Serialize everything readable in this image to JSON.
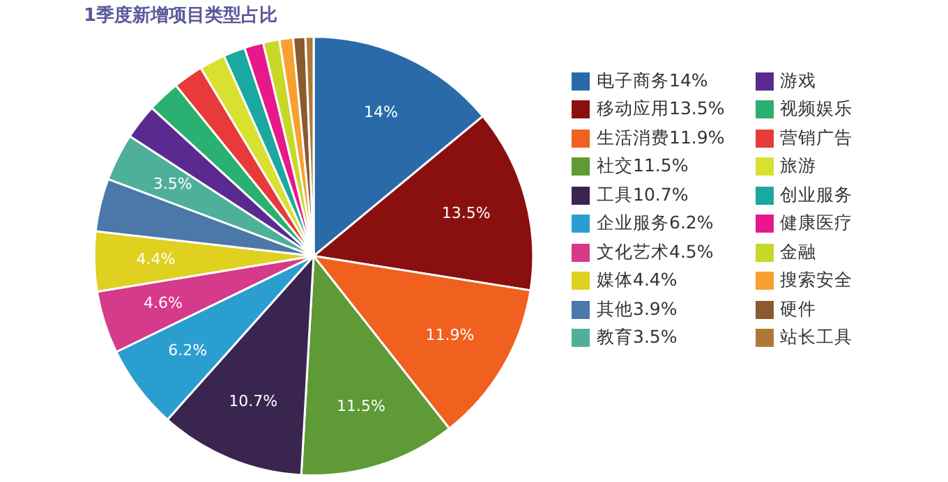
{
  "chart_data": {
    "type": "pie",
    "title": "1季度新增项目类型占比",
    "categories": [
      "电子商务14%",
      "移动应用13.5%",
      "生活消费11.9%",
      "社交11.5%",
      "工具10.7%",
      "企业服务6.2%",
      "文化艺术4.5%",
      "媒体4.4%",
      "其他3.9%",
      "教育3.5%",
      "游戏",
      "视频娱乐",
      "营销广告",
      "旅游",
      "创业服务",
      "健康医疗",
      "金融",
      "搜索安全",
      "硬件",
      "站长工具"
    ],
    "values": [
      14,
      13.5,
      11.9,
      11.5,
      10.7,
      6.2,
      4.6,
      4.4,
      3.9,
      3.5,
      2.6,
      2.4,
      2.2,
      1.9,
      1.6,
      1.4,
      1.2,
      1.0,
      0.9,
      0.6
    ],
    "value_labels": [
      "14%",
      "13.5%",
      "11.9%",
      "11.5%",
      "10.7%",
      "6.2%",
      "4.6%",
      "4.4%",
      null,
      "3.5%",
      null,
      null,
      null,
      null,
      null,
      null,
      null,
      null,
      null,
      null
    ],
    "colors": [
      "#2a6aa8",
      "#8a1010",
      "#f0601e",
      "#5e9a35",
      "#3a2550",
      "#2b9ed0",
      "#d63a8a",
      "#e0d020",
      "#4a78a8",
      "#4fb09a",
      "#5a2a90",
      "#2ab070",
      "#e83a3a",
      "#d8e030",
      "#1aa8a0",
      "#e8188a",
      "#c8d828",
      "#f8a030",
      "#8a5a30",
      "#b07838"
    ],
    "legend": "right"
  }
}
